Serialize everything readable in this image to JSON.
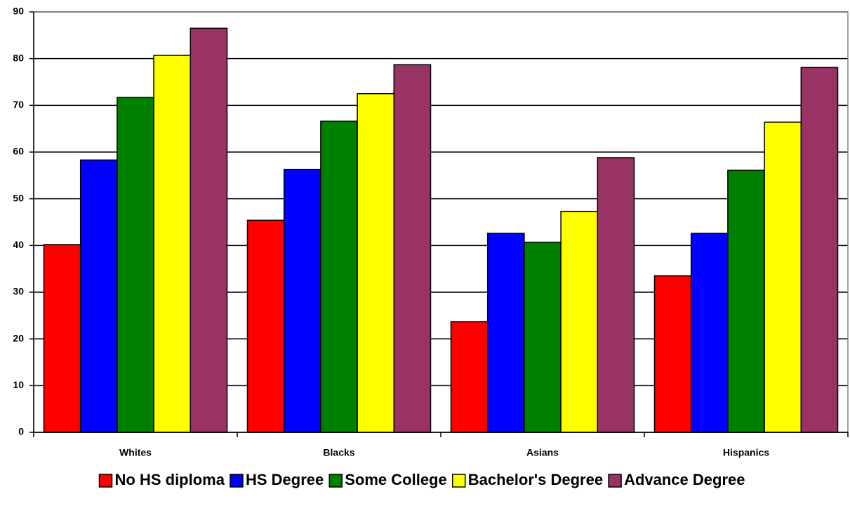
{
  "chart_data": {
    "type": "bar",
    "categories": [
      "Whites",
      "Blacks",
      "Asians",
      "Hispanics"
    ],
    "series": [
      {
        "name": "No HS diploma",
        "color": "#ff0000",
        "values": [
          40.2,
          45.4,
          23.7,
          33.5
        ]
      },
      {
        "name": "HS Degree",
        "color": "#0000ff",
        "values": [
          58.3,
          56.3,
          42.6,
          42.6
        ]
      },
      {
        "name": "Some College",
        "color": "#008000",
        "values": [
          71.7,
          66.6,
          40.7,
          56.1
        ]
      },
      {
        "name": "Bachelor's Degree",
        "color": "#ffff00",
        "values": [
          80.7,
          72.5,
          47.3,
          66.4
        ]
      },
      {
        "name": "Advance Degree",
        "color": "#993366",
        "values": [
          86.5,
          78.7,
          58.8,
          78.1
        ]
      }
    ],
    "ylim": [
      0,
      90
    ],
    "yticks": [
      0,
      10,
      20,
      30,
      40,
      50,
      60,
      70,
      80,
      90
    ],
    "grid": true,
    "legend": "bottom"
  }
}
